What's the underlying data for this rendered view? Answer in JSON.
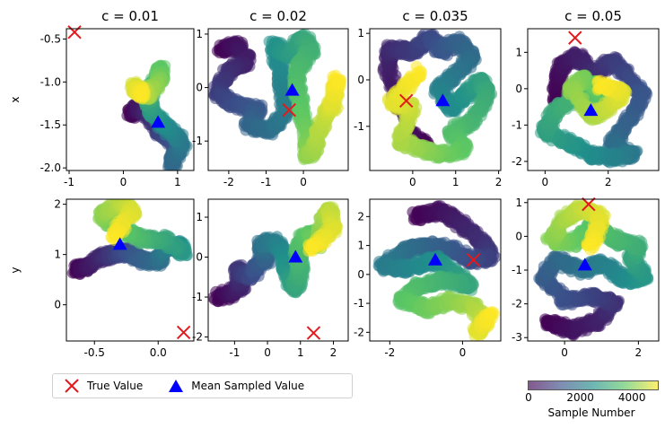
{
  "chart_data": {
    "type": "scatter",
    "colormap": [
      "#440154",
      "#3b528b",
      "#21908c",
      "#5dc863",
      "#fde725"
    ],
    "true_marker_color": "#e31a1c",
    "mean_marker_color": "#0000ff",
    "legend": {
      "true_label": "True Value",
      "mean_label": "Mean Sampled Value",
      "placement": "bottom-left"
    },
    "colorbar": {
      "label": "Sample Number",
      "range": [
        0,
        5000
      ],
      "ticks": [
        {
          "v": 0,
          "label": "0"
        },
        {
          "v": 2000,
          "label": "2000"
        },
        {
          "v": 4000,
          "label": "4000"
        }
      ]
    },
    "rows": [
      {
        "label": "x"
      },
      {
        "label": "y"
      }
    ],
    "columns": [
      {
        "title": "c = 0.01"
      },
      {
        "title": "c = 0.02"
      },
      {
        "title": "c = 0.035"
      },
      {
        "title": "c = 0.05"
      }
    ],
    "panels": [
      {
        "row": 0,
        "col": 0,
        "xlim": [
          -1.05,
          1.3
        ],
        "ylim": [
          -2.03,
          -0.38
        ],
        "xticks": [
          "-1",
          "0",
          "1"
        ],
        "xtick_values": [
          -1,
          0,
          1
        ],
        "yticks": [
          "-2.0",
          "-1.5",
          "-1.0",
          "-0.5"
        ],
        "ytick_values": [
          -2.0,
          -1.5,
          -1.0,
          -0.5
        ],
        "true": [
          -0.9,
          -0.42
        ],
        "mean": [
          0.64,
          -1.47
        ],
        "path": [
          [
            0.14,
            -1.38
          ],
          [
            0.3,
            -1.3
          ],
          [
            0.5,
            -1.4
          ],
          [
            0.7,
            -1.6
          ],
          [
            1.0,
            -1.75
          ],
          [
            0.9,
            -1.95
          ],
          [
            1.1,
            -1.7
          ],
          [
            0.8,
            -1.55
          ],
          [
            0.55,
            -1.35
          ],
          [
            0.45,
            -1.2
          ],
          [
            0.55,
            -1.05
          ],
          [
            0.7,
            -0.85
          ],
          [
            0.65,
            -1.0
          ],
          [
            0.45,
            -1.15
          ],
          [
            0.2,
            -1.05
          ],
          [
            0.35,
            -1.15
          ]
        ]
      },
      {
        "row": 0,
        "col": 1,
        "xlim": [
          -2.55,
          1.2
        ],
        "ylim": [
          -1.55,
          1.1
        ],
        "xticks": [
          "-2",
          "-1",
          "0"
        ],
        "xtick_values": [
          -2,
          -1,
          0
        ],
        "yticks": [
          "-1",
          "0",
          "1"
        ],
        "ytick_values": [
          -1,
          0,
          1
        ],
        "true": [
          -0.38,
          -0.42
        ],
        "mean": [
          -0.3,
          -0.05
        ],
        "path": [
          [
            -2.2,
            0.7
          ],
          [
            -1.8,
            0.8
          ],
          [
            -1.5,
            0.5
          ],
          [
            -2.0,
            0.3
          ],
          [
            -2.3,
            -0.1
          ],
          [
            -1.9,
            -0.3
          ],
          [
            -1.2,
            -0.4
          ],
          [
            -1.5,
            -0.7
          ],
          [
            -0.9,
            -0.8
          ],
          [
            -0.5,
            -0.5
          ],
          [
            -0.6,
            0.2
          ],
          [
            -0.8,
            0.8
          ],
          [
            -0.4,
            0.6
          ],
          [
            0.0,
            0.95
          ],
          [
            0.2,
            0.7
          ],
          [
            -0.2,
            0.3
          ],
          [
            -0.1,
            -0.3
          ],
          [
            0.1,
            -0.8
          ],
          [
            0.1,
            -1.3
          ],
          [
            0.3,
            -1.1
          ],
          [
            0.6,
            -0.5
          ],
          [
            0.8,
            -0.3
          ],
          [
            0.9,
            0.2
          ]
        ]
      },
      {
        "row": 0,
        "col": 2,
        "xlim": [
          -1.0,
          2.05
        ],
        "ylim": [
          -1.95,
          1.1
        ],
        "xticks": [
          "0",
          "1",
          "2"
        ],
        "xtick_values": [
          0,
          1,
          2
        ],
        "yticks": [
          "-1",
          "0",
          "1"
        ],
        "ytick_values": [
          -1,
          0,
          1
        ],
        "true": [
          -0.15,
          -0.45
        ],
        "mean": [
          0.7,
          -0.45
        ],
        "path": [
          [
            0.3,
            -1.4
          ],
          [
            -0.1,
            -1.1
          ],
          [
            -0.6,
            0.3
          ],
          [
            -0.5,
            0.7
          ],
          [
            0.0,
            0.6
          ],
          [
            0.4,
            0.9
          ],
          [
            0.7,
            0.6
          ],
          [
            1.0,
            0.85
          ],
          [
            1.4,
            0.5
          ],
          [
            1.0,
            0.1
          ],
          [
            0.6,
            -0.2
          ],
          [
            0.9,
            -0.6
          ],
          [
            1.3,
            -0.3
          ],
          [
            1.6,
            0.0
          ],
          [
            1.75,
            -0.3
          ],
          [
            1.4,
            -0.9
          ],
          [
            0.9,
            -1.1
          ],
          [
            1.2,
            -1.5
          ],
          [
            0.6,
            -1.6
          ],
          [
            0.2,
            -1.5
          ],
          [
            -0.3,
            -1.3
          ],
          [
            0.0,
            -0.6
          ],
          [
            -0.5,
            -0.5
          ],
          [
            0.2,
            0.2
          ]
        ]
      },
      {
        "row": 0,
        "col": 3,
        "xlim": [
          -0.55,
          3.6
        ],
        "ylim": [
          -2.25,
          1.65
        ],
        "xticks": [
          "0",
          "2"
        ],
        "xtick_values": [
          0,
          2
        ],
        "yticks": [
          "-2",
          "-1",
          "0",
          "1"
        ],
        "ytick_values": [
          -2,
          -1,
          0,
          1
        ],
        "true": [
          0.95,
          1.4
        ],
        "mean": [
          1.45,
          -0.6
        ],
        "path": [
          [
            0.3,
            -0.3
          ],
          [
            0.5,
            0.6
          ],
          [
            1.0,
            0.9
          ],
          [
            1.6,
            0.4
          ],
          [
            2.1,
            0.8
          ],
          [
            2.7,
            0.3
          ],
          [
            3.1,
            -0.2
          ],
          [
            2.6,
            -1.0
          ],
          [
            2.1,
            -1.5
          ],
          [
            2.8,
            -1.8
          ],
          [
            2.2,
            -1.9
          ],
          [
            1.4,
            -1.8
          ],
          [
            0.8,
            -1.5
          ],
          [
            0.0,
            -1.2
          ],
          [
            0.3,
            -0.6
          ],
          [
            1.0,
            -0.2
          ],
          [
            1.4,
            -0.4
          ],
          [
            1.8,
            -0.1
          ],
          [
            1.2,
            0.3
          ],
          [
            0.8,
            0.0
          ],
          [
            1.5,
            -0.8
          ],
          [
            2.0,
            -0.5
          ],
          [
            2.5,
            -0.1
          ],
          [
            1.7,
            0.1
          ]
        ]
      },
      {
        "row": 1,
        "col": 0,
        "xlim": [
          -0.72,
          0.28
        ],
        "ylim": [
          -0.72,
          2.1
        ],
        "xticks": [
          "-0.5",
          "0.0"
        ],
        "xtick_values": [
          -0.5,
          0.0
        ],
        "yticks": [
          "0",
          "1",
          "2"
        ],
        "ytick_values": [
          0,
          1,
          2
        ],
        "true": [
          0.2,
          -0.55
        ],
        "mean": [
          -0.3,
          1.2
        ],
        "path": [
          [
            -0.65,
            0.7
          ],
          [
            -0.55,
            0.75
          ],
          [
            -0.45,
            0.95
          ],
          [
            -0.35,
            1.0
          ],
          [
            -0.25,
            1.05
          ],
          [
            -0.15,
            0.9
          ],
          [
            0.0,
            0.85
          ],
          [
            0.05,
            1.1
          ],
          [
            0.15,
            1.2
          ],
          [
            0.2,
            1.05
          ],
          [
            0.05,
            1.3
          ],
          [
            -0.1,
            1.3
          ],
          [
            -0.2,
            1.4
          ],
          [
            -0.35,
            1.6
          ],
          [
            -0.45,
            1.8
          ],
          [
            -0.3,
            2.0
          ],
          [
            -0.2,
            1.85
          ],
          [
            -0.35,
            1.35
          ]
        ]
      },
      {
        "row": 1,
        "col": 1,
        "xlim": [
          -1.8,
          2.45
        ],
        "ylim": [
          -2.1,
          1.45
        ],
        "xticks": [
          "-1",
          "0",
          "1",
          "2"
        ],
        "xtick_values": [
          -1,
          0,
          1,
          2
        ],
        "yticks": [
          "-2",
          "-1",
          "0",
          "1"
        ],
        "ytick_values": [
          -2,
          -1,
          0,
          1
        ],
        "true": [
          1.4,
          -1.9
        ],
        "mean": [
          0.85,
          0.0
        ],
        "path": [
          [
            -1.5,
            -1.0
          ],
          [
            -1.1,
            -0.9
          ],
          [
            -0.8,
            -0.7
          ],
          [
            -0.9,
            -0.3
          ],
          [
            -0.5,
            -0.5
          ],
          [
            -0.3,
            -0.2
          ],
          [
            0.0,
            0.0
          ],
          [
            -0.2,
            0.3
          ],
          [
            0.2,
            0.4
          ],
          [
            0.5,
            0.1
          ],
          [
            0.6,
            -0.4
          ],
          [
            0.8,
            -0.8
          ],
          [
            1.0,
            -0.4
          ],
          [
            0.9,
            0.2
          ],
          [
            1.2,
            0.6
          ],
          [
            1.5,
            0.3
          ],
          [
            1.7,
            0.9
          ],
          [
            1.9,
            1.2
          ],
          [
            2.0,
            0.7
          ],
          [
            1.3,
            0.2
          ]
        ]
      },
      {
        "row": 1,
        "col": 2,
        "xlim": [
          -2.55,
          1.05
        ],
        "ylim": [
          -2.3,
          2.6
        ],
        "xticks": [
          "-2",
          "0"
        ],
        "xtick_values": [
          -2,
          0
        ],
        "yticks": [
          "-2",
          "-1",
          "0",
          "1",
          "2"
        ],
        "ytick_values": [
          -2,
          -1,
          0,
          1,
          2
        ],
        "true": [
          0.3,
          0.5
        ],
        "mean": [
          -0.75,
          0.5
        ],
        "path": [
          [
            -1.3,
            2.0
          ],
          [
            -0.6,
            2.2
          ],
          [
            -0.1,
            1.8
          ],
          [
            0.5,
            1.2
          ],
          [
            0.8,
            0.6
          ],
          [
            0.2,
            0.5
          ],
          [
            -0.3,
            0.9
          ],
          [
            -1.0,
            1.0
          ],
          [
            -1.6,
            0.8
          ],
          [
            -2.2,
            0.3
          ],
          [
            -1.5,
            0.2
          ],
          [
            -0.7,
            0.5
          ],
          [
            -0.2,
            0.0
          ],
          [
            0.2,
            -0.4
          ],
          [
            -0.5,
            -0.2
          ],
          [
            -1.2,
            -0.4
          ],
          [
            -1.7,
            -0.9
          ],
          [
            -1.0,
            -1.2
          ],
          [
            -0.3,
            -0.9
          ],
          [
            0.3,
            -1.1
          ],
          [
            0.6,
            -1.6
          ],
          [
            0.4,
            -2.0
          ],
          [
            0.8,
            -1.4
          ]
        ]
      },
      {
        "row": 1,
        "col": 3,
        "xlim": [
          -1.0,
          2.55
        ],
        "ylim": [
          -3.1,
          1.1
        ],
        "xticks": [
          "0",
          "2"
        ],
        "xtick_values": [
          0,
          2
        ],
        "yticks": [
          "-3",
          "-2",
          "-1",
          "0",
          "1"
        ],
        "ytick_values": [
          -3,
          -2,
          -1,
          0,
          1
        ],
        "true": [
          0.65,
          0.95
        ],
        "mean": [
          0.55,
          -0.85
        ],
        "path": [
          [
            -0.5,
            -2.5
          ],
          [
            0.2,
            -2.8
          ],
          [
            0.9,
            -2.5
          ],
          [
            1.4,
            -2.0
          ],
          [
            0.8,
            -1.8
          ],
          [
            0.0,
            -1.9
          ],
          [
            -0.6,
            -1.2
          ],
          [
            -0.2,
            -0.7
          ],
          [
            0.5,
            -1.0
          ],
          [
            1.0,
            -0.8
          ],
          [
            1.6,
            -1.3
          ],
          [
            2.2,
            -1.2
          ],
          [
            1.8,
            -0.7
          ],
          [
            2.0,
            -0.3
          ],
          [
            1.4,
            -0.1
          ],
          [
            0.8,
            0.3
          ],
          [
            0.2,
            -0.2
          ],
          [
            -0.4,
            -0.1
          ],
          [
            0.0,
            0.5
          ],
          [
            0.4,
            0.8
          ],
          [
            1.0,
            0.6
          ],
          [
            0.7,
            -0.4
          ]
        ]
      }
    ]
  }
}
